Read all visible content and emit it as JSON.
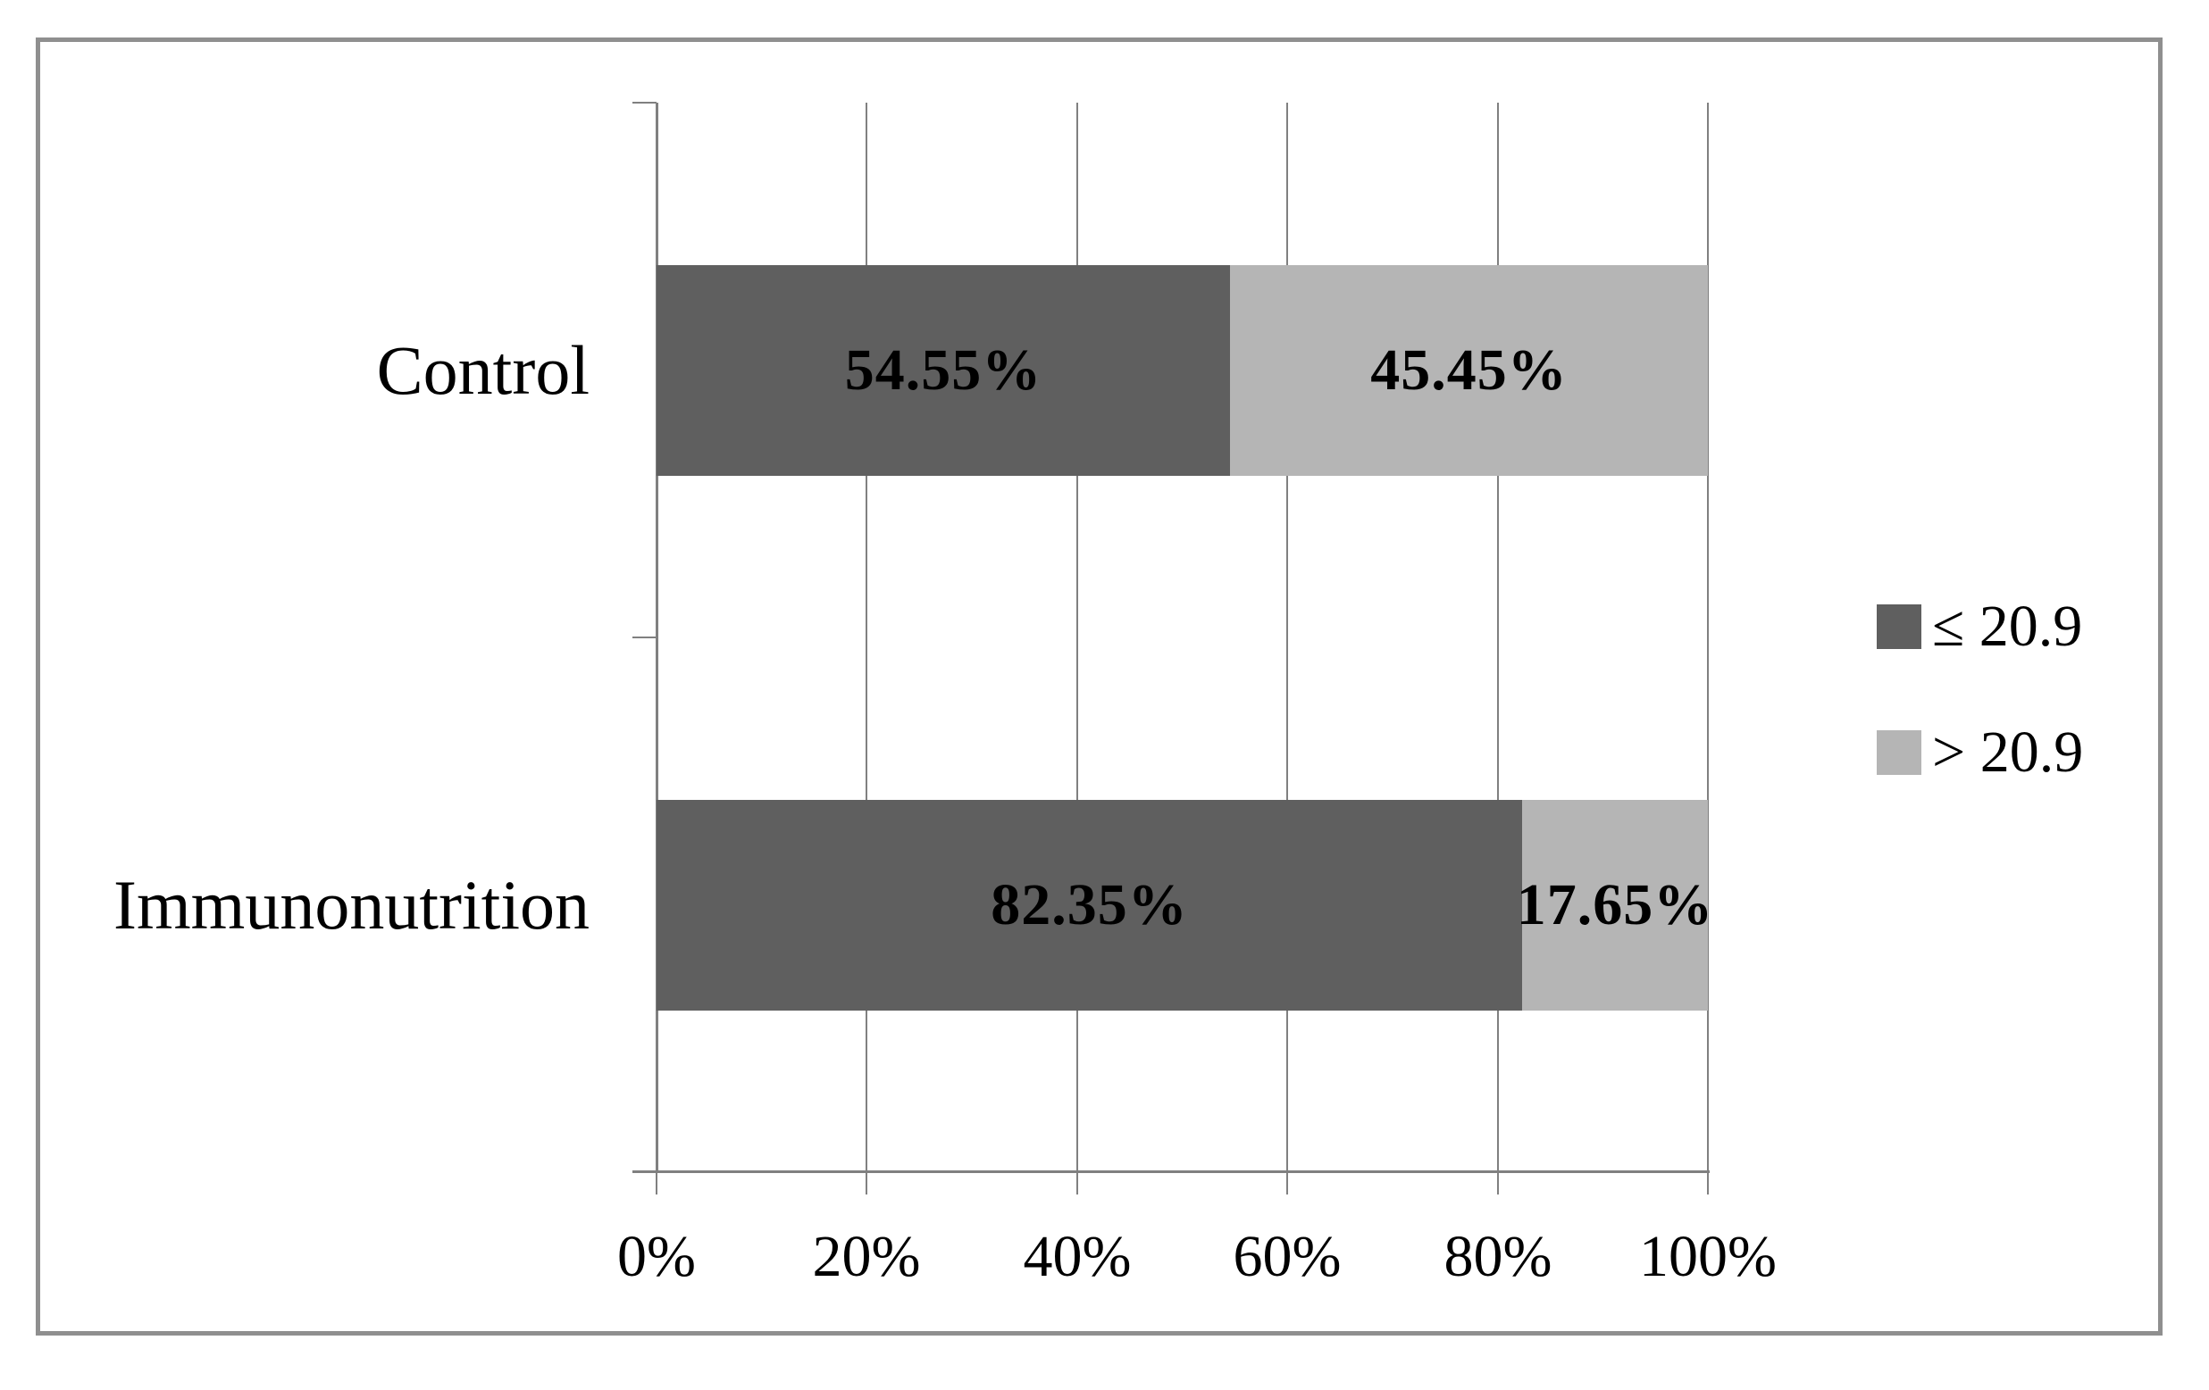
{
  "chart_data": {
    "type": "bar",
    "orientation": "horizontal",
    "stacked": true,
    "grid": true,
    "background": "#ffffff",
    "frame_border_color": "#8f8f8f",
    "axis_color": "#808080",
    "data_label_color": "#000000",
    "categories": [
      "Control",
      "Immunonutrition"
    ],
    "series": [
      {
        "name": "≤ 20.9",
        "color": "#5f5f5f",
        "values": [
          54.55,
          82.35
        ],
        "data_labels": [
          "54.55%",
          "82.35%"
        ]
      },
      {
        "name": "> 20.9",
        "color": "#b5b5b5",
        "values": [
          45.45,
          17.65
        ],
        "data_labels": [
          "45.45%",
          "17.65%"
        ]
      }
    ],
    "x_axis": {
      "min": 0,
      "max": 100,
      "tick_step": 20,
      "tick_labels": [
        "0%",
        "20%",
        "40%",
        "60%",
        "80%",
        "100%"
      ]
    },
    "legend": {
      "position": "right",
      "entries": [
        {
          "label": "≤ 20.9",
          "color": "#5f5f5f"
        },
        {
          "label": "> 20.9",
          "color": "#b5b5b5"
        }
      ]
    }
  }
}
